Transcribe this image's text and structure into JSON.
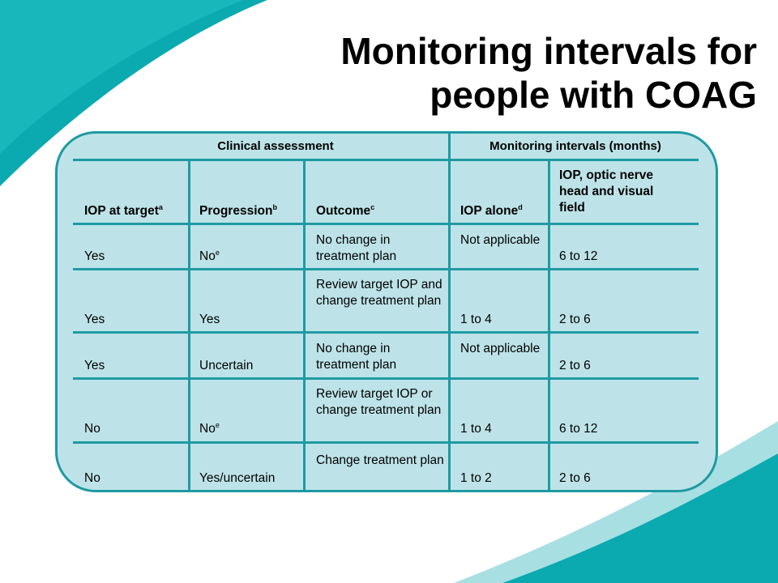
{
  "title": {
    "line1": "Monitoring intervals for",
    "line2": "people with COAG"
  },
  "colors": {
    "accent": "#1e9aa3",
    "panel": "#bde3e8",
    "swoosh_dark": "#0aaab0",
    "swoosh_light": "#a8dfe2"
  },
  "table": {
    "group_headers": {
      "left": "Clinical assessment",
      "right": "Monitoring intervals (months)"
    },
    "columns": [
      {
        "label": "IOP at target",
        "note": "a"
      },
      {
        "label": "Progression",
        "note": "b"
      },
      {
        "label": "Outcome",
        "note": "c"
      },
      {
        "label": "IOP alone",
        "note": "d"
      },
      {
        "label": "IOP, optic nerve head and visual field",
        "note": ""
      }
    ],
    "rows": [
      {
        "iop_target": "Yes",
        "progression": "No",
        "progression_note": "e",
        "outcome": "No change in treatment plan",
        "iop_alone": "Not applicable",
        "all": "6 to 12"
      },
      {
        "iop_target": "Yes",
        "progression": "Yes",
        "progression_note": "",
        "outcome": "Review target IOP and change treatment plan",
        "iop_alone": "1 to 4",
        "all": "2 to 6"
      },
      {
        "iop_target": "Yes",
        "progression": "Uncertain",
        "progression_note": "",
        "outcome": "No change in treatment plan",
        "iop_alone": "Not applicable",
        "all": "2 to 6"
      },
      {
        "iop_target": "No",
        "progression": "No",
        "progression_note": "e",
        "outcome": "Review target IOP or change treatment plan",
        "iop_alone": "1 to 4",
        "all": "6 to 12"
      },
      {
        "iop_target": "No",
        "progression": "Yes/uncertain",
        "progression_note": "",
        "outcome": "Change treatment plan",
        "iop_alone": "1 to 2",
        "all": "2 to 6"
      }
    ]
  }
}
